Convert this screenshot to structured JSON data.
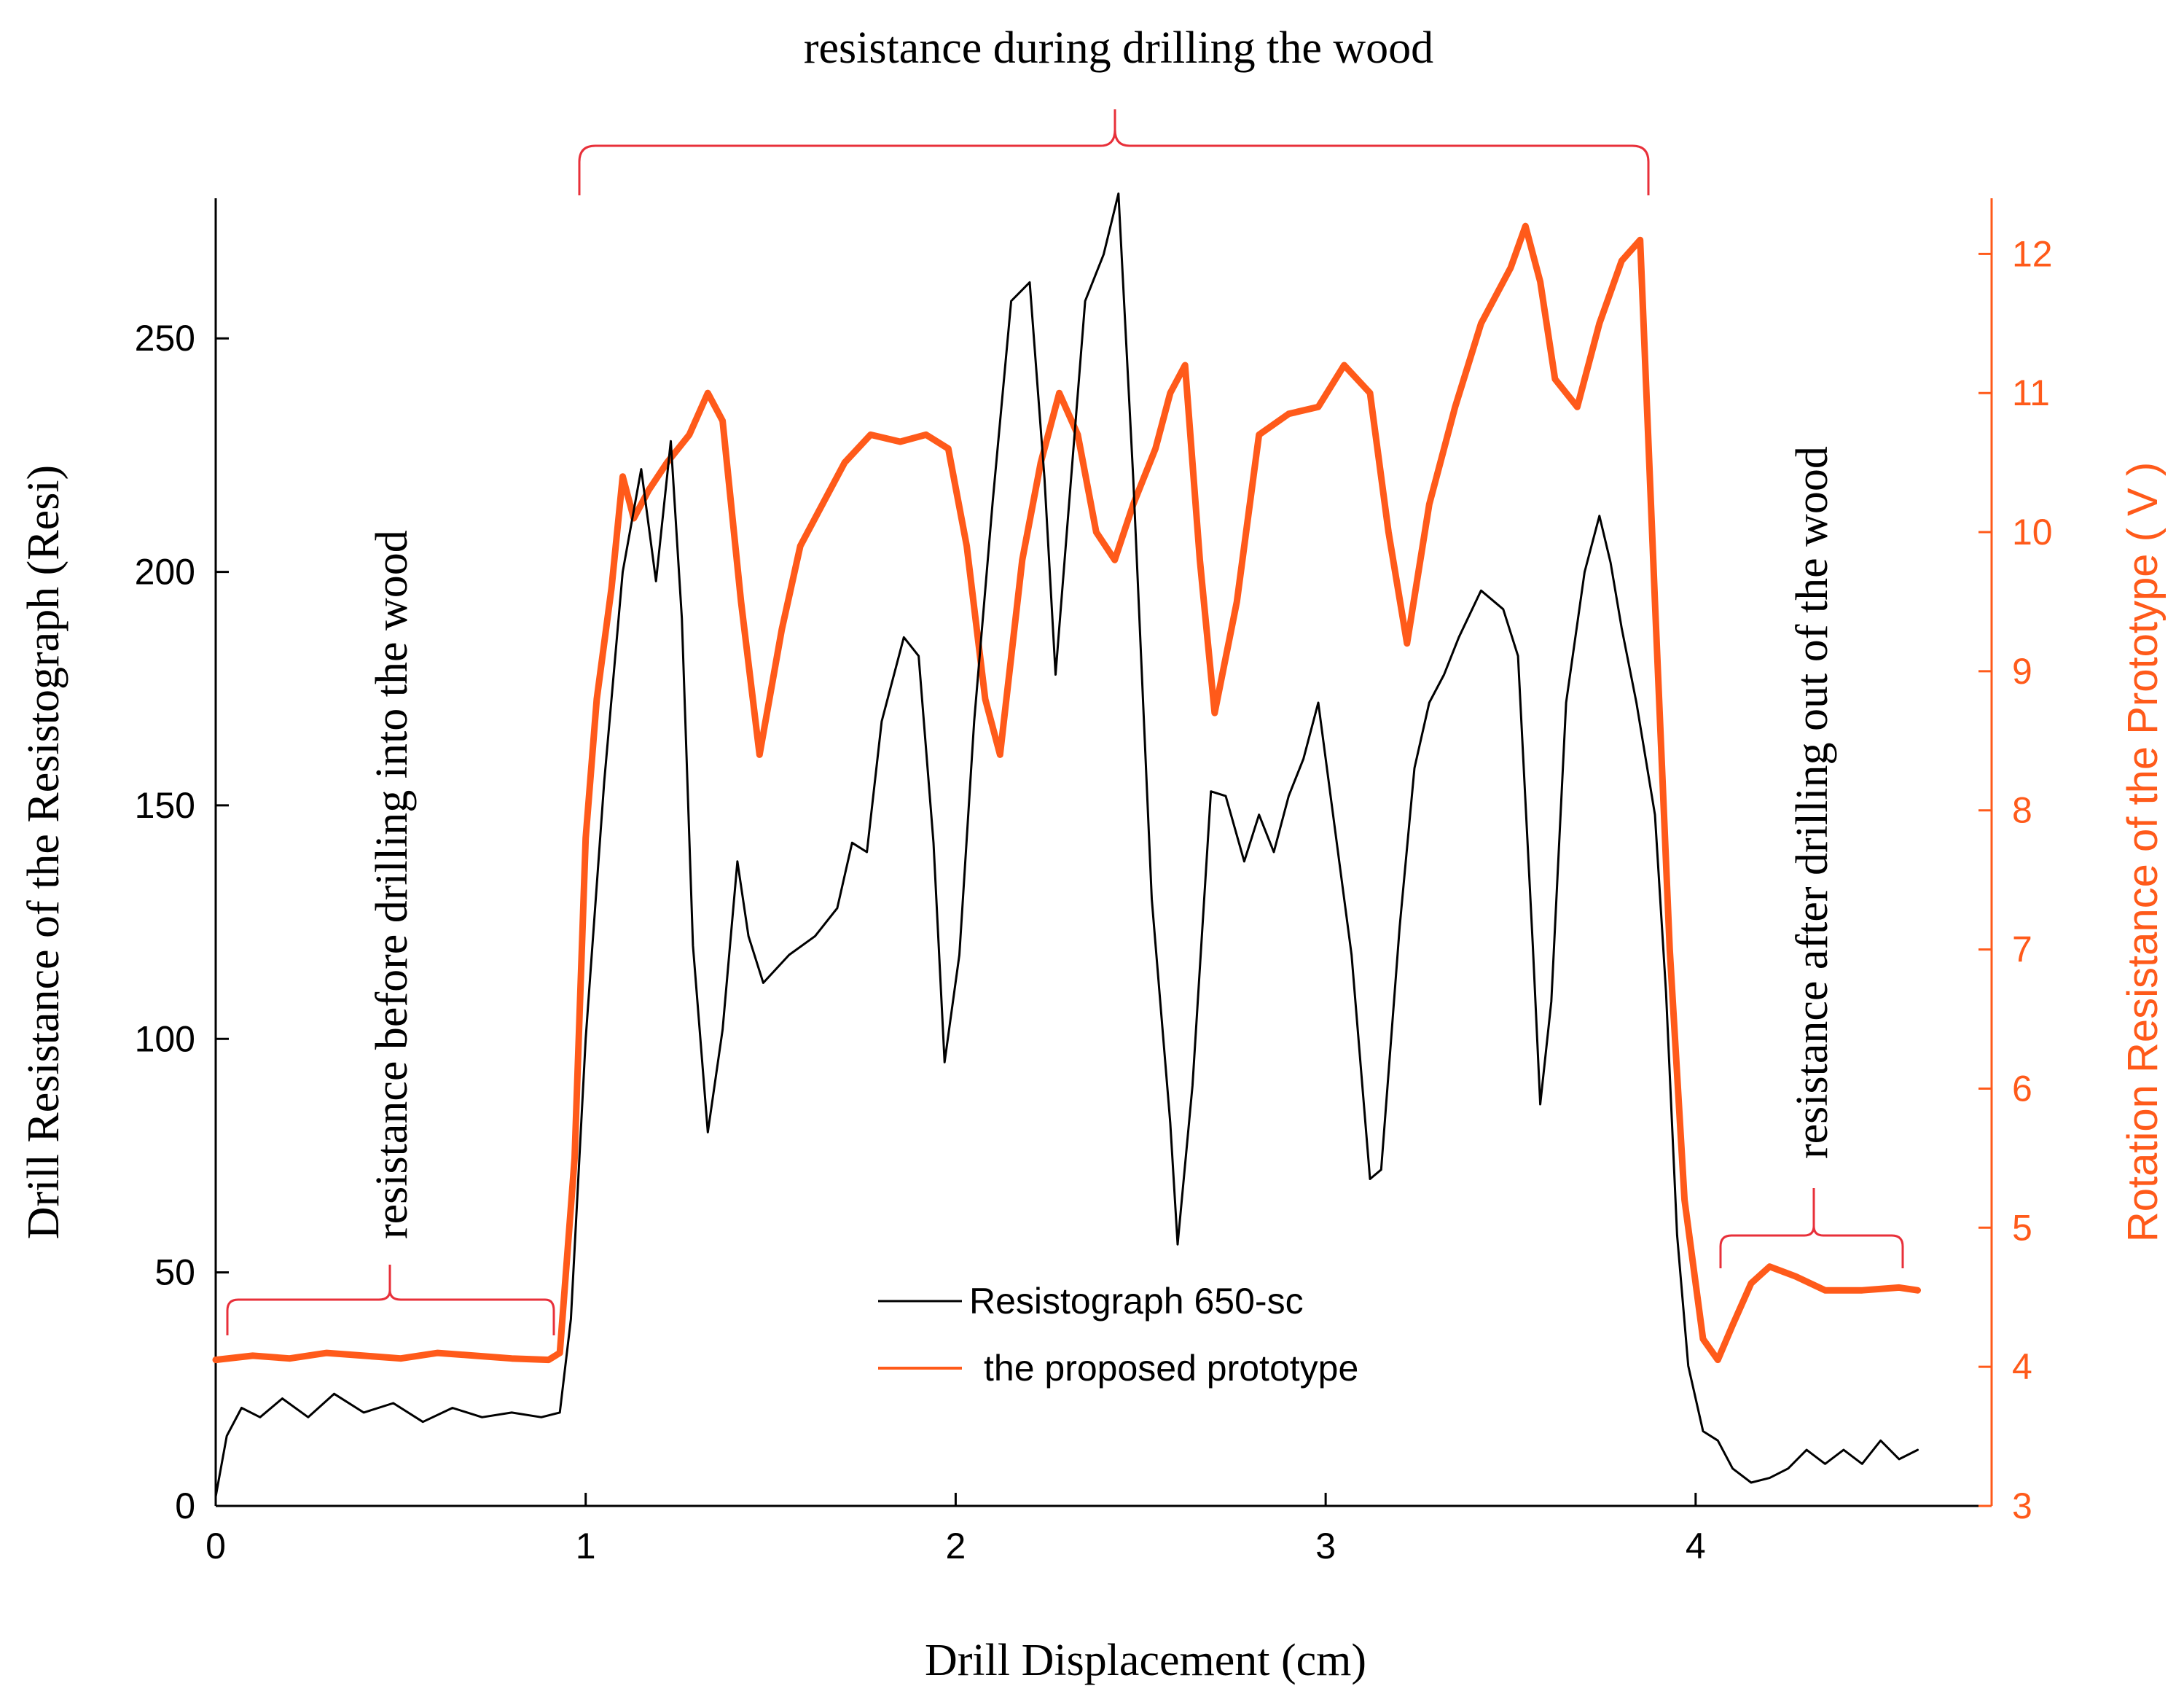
{
  "chart_data": {
    "type": "line",
    "xlabel": "Drill Displacement (cm)",
    "ylabel": "Drill Resistance of the Resistograph (Resi)",
    "y2label": "Rotation Resistance of the Prototype ( V )",
    "xlim": [
      0,
      4.8
    ],
    "ylim": [
      0,
      280
    ],
    "y2lim": [
      3,
      12.4
    ],
    "x_ticks": [
      "0",
      "1",
      "2",
      "3",
      "4"
    ],
    "y_ticks": [
      "0",
      "50",
      "100",
      "150",
      "200",
      "250"
    ],
    "y2_ticks": [
      "3",
      "4",
      "5",
      "6",
      "7",
      "8",
      "9",
      "10",
      "11",
      "12"
    ],
    "grid": false,
    "legend_position": "bottom-center",
    "colors": {
      "resistograph": "#000000",
      "prototype": "#ff5a1a",
      "brace": "#e8303a"
    },
    "annotations": {
      "during": "resistance during drilling the wood",
      "before": "resistance before drilling into the wood",
      "after": "resistance after drilling out of the wood"
    },
    "series": [
      {
        "name": "Resistograph 650-sc",
        "axis": "left",
        "points": [
          [
            0.0,
            2
          ],
          [
            0.03,
            15
          ],
          [
            0.07,
            21
          ],
          [
            0.12,
            19
          ],
          [
            0.18,
            23
          ],
          [
            0.25,
            19
          ],
          [
            0.32,
            24
          ],
          [
            0.4,
            20
          ],
          [
            0.48,
            22
          ],
          [
            0.56,
            18
          ],
          [
            0.64,
            21
          ],
          [
            0.72,
            19
          ],
          [
            0.8,
            20
          ],
          [
            0.88,
            19
          ],
          [
            0.93,
            20
          ],
          [
            0.96,
            40
          ],
          [
            1.0,
            100
          ],
          [
            1.05,
            155
          ],
          [
            1.1,
            200
          ],
          [
            1.15,
            222
          ],
          [
            1.19,
            198
          ],
          [
            1.23,
            228
          ],
          [
            1.26,
            190
          ],
          [
            1.29,
            120
          ],
          [
            1.33,
            80
          ],
          [
            1.37,
            102
          ],
          [
            1.41,
            138
          ],
          [
            1.44,
            122
          ],
          [
            1.48,
            112
          ],
          [
            1.55,
            118
          ],
          [
            1.62,
            122
          ],
          [
            1.68,
            128
          ],
          [
            1.72,
            142
          ],
          [
            1.76,
            140
          ],
          [
            1.8,
            168
          ],
          [
            1.86,
            186
          ],
          [
            1.9,
            182
          ],
          [
            1.94,
            142
          ],
          [
            1.97,
            95
          ],
          [
            2.01,
            118
          ],
          [
            2.05,
            168
          ],
          [
            2.1,
            215
          ],
          [
            2.15,
            258
          ],
          [
            2.2,
            262
          ],
          [
            2.24,
            220
          ],
          [
            2.27,
            178
          ],
          [
            2.3,
            208
          ],
          [
            2.35,
            258
          ],
          [
            2.4,
            268
          ],
          [
            2.44,
            281
          ],
          [
            2.48,
            220
          ],
          [
            2.53,
            130
          ],
          [
            2.58,
            82
          ],
          [
            2.6,
            56
          ],
          [
            2.64,
            90
          ],
          [
            2.69,
            153
          ],
          [
            2.73,
            152
          ],
          [
            2.78,
            138
          ],
          [
            2.82,
            148
          ],
          [
            2.86,
            140
          ],
          [
            2.9,
            152
          ],
          [
            2.94,
            160
          ],
          [
            2.98,
            172
          ],
          [
            3.02,
            148
          ],
          [
            3.07,
            118
          ],
          [
            3.12,
            70
          ],
          [
            3.15,
            72
          ],
          [
            3.2,
            124
          ],
          [
            3.24,
            158
          ],
          [
            3.28,
            172
          ],
          [
            3.32,
            178
          ],
          [
            3.36,
            186
          ],
          [
            3.42,
            196
          ],
          [
            3.48,
            192
          ],
          [
            3.52,
            182
          ],
          [
            3.56,
            120
          ],
          [
            3.58,
            86
          ],
          [
            3.61,
            108
          ],
          [
            3.65,
            172
          ],
          [
            3.7,
            200
          ],
          [
            3.74,
            212
          ],
          [
            3.77,
            202
          ],
          [
            3.8,
            188
          ],
          [
            3.84,
            172
          ],
          [
            3.89,
            148
          ],
          [
            3.92,
            110
          ],
          [
            3.95,
            58
          ],
          [
            3.98,
            30
          ],
          [
            4.02,
            16
          ],
          [
            4.06,
            14
          ],
          [
            4.1,
            8
          ],
          [
            4.15,
            5
          ],
          [
            4.2,
            6
          ],
          [
            4.25,
            8
          ],
          [
            4.3,
            12
          ],
          [
            4.35,
            9
          ],
          [
            4.4,
            12
          ],
          [
            4.45,
            9
          ],
          [
            4.5,
            14
          ],
          [
            4.55,
            10
          ],
          [
            4.6,
            12
          ]
        ]
      },
      {
        "name": "the proposed prototype",
        "axis": "right",
        "points": [
          [
            0.0,
            4.05
          ],
          [
            0.1,
            4.08
          ],
          [
            0.2,
            4.06
          ],
          [
            0.3,
            4.1
          ],
          [
            0.4,
            4.08
          ],
          [
            0.5,
            4.06
          ],
          [
            0.6,
            4.1
          ],
          [
            0.7,
            4.08
          ],
          [
            0.8,
            4.06
          ],
          [
            0.9,
            4.05
          ],
          [
            0.93,
            4.1
          ],
          [
            0.97,
            5.5
          ],
          [
            1.0,
            7.8
          ],
          [
            1.03,
            8.8
          ],
          [
            1.07,
            9.6
          ],
          [
            1.1,
            10.4
          ],
          [
            1.13,
            10.1
          ],
          [
            1.17,
            10.3
          ],
          [
            1.22,
            10.5
          ],
          [
            1.28,
            10.7
          ],
          [
            1.33,
            11.0
          ],
          [
            1.37,
            10.8
          ],
          [
            1.42,
            9.5
          ],
          [
            1.47,
            8.4
          ],
          [
            1.53,
            9.3
          ],
          [
            1.58,
            9.9
          ],
          [
            1.64,
            10.2
          ],
          [
            1.7,
            10.5
          ],
          [
            1.77,
            10.7
          ],
          [
            1.85,
            10.65
          ],
          [
            1.92,
            10.7
          ],
          [
            1.98,
            10.6
          ],
          [
            2.03,
            9.9
          ],
          [
            2.08,
            8.8
          ],
          [
            2.12,
            8.4
          ],
          [
            2.18,
            9.8
          ],
          [
            2.23,
            10.5
          ],
          [
            2.28,
            11.0
          ],
          [
            2.33,
            10.7
          ],
          [
            2.38,
            10.0
          ],
          [
            2.43,
            9.8
          ],
          [
            2.48,
            10.2
          ],
          [
            2.54,
            10.6
          ],
          [
            2.58,
            11.0
          ],
          [
            2.62,
            11.2
          ],
          [
            2.66,
            9.8
          ],
          [
            2.7,
            8.7
          ],
          [
            2.76,
            9.5
          ],
          [
            2.82,
            10.7
          ],
          [
            2.9,
            10.85
          ],
          [
            2.98,
            10.9
          ],
          [
            3.05,
            11.2
          ],
          [
            3.12,
            11.0
          ],
          [
            3.17,
            10.0
          ],
          [
            3.22,
            9.2
          ],
          [
            3.28,
            10.2
          ],
          [
            3.35,
            10.9
          ],
          [
            3.42,
            11.5
          ],
          [
            3.5,
            11.9
          ],
          [
            3.54,
            12.2
          ],
          [
            3.58,
            11.8
          ],
          [
            3.62,
            11.1
          ],
          [
            3.68,
            10.9
          ],
          [
            3.74,
            11.5
          ],
          [
            3.8,
            11.95
          ],
          [
            3.85,
            12.1
          ],
          [
            3.89,
            9.5
          ],
          [
            3.93,
            7.0
          ],
          [
            3.97,
            5.2
          ],
          [
            4.02,
            4.2
          ],
          [
            4.06,
            4.05
          ],
          [
            4.1,
            4.3
          ],
          [
            4.15,
            4.6
          ],
          [
            4.2,
            4.72
          ],
          [
            4.27,
            4.65
          ],
          [
            4.35,
            4.55
          ],
          [
            4.45,
            4.55
          ],
          [
            4.55,
            4.57
          ],
          [
            4.6,
            4.55
          ]
        ]
      }
    ]
  }
}
